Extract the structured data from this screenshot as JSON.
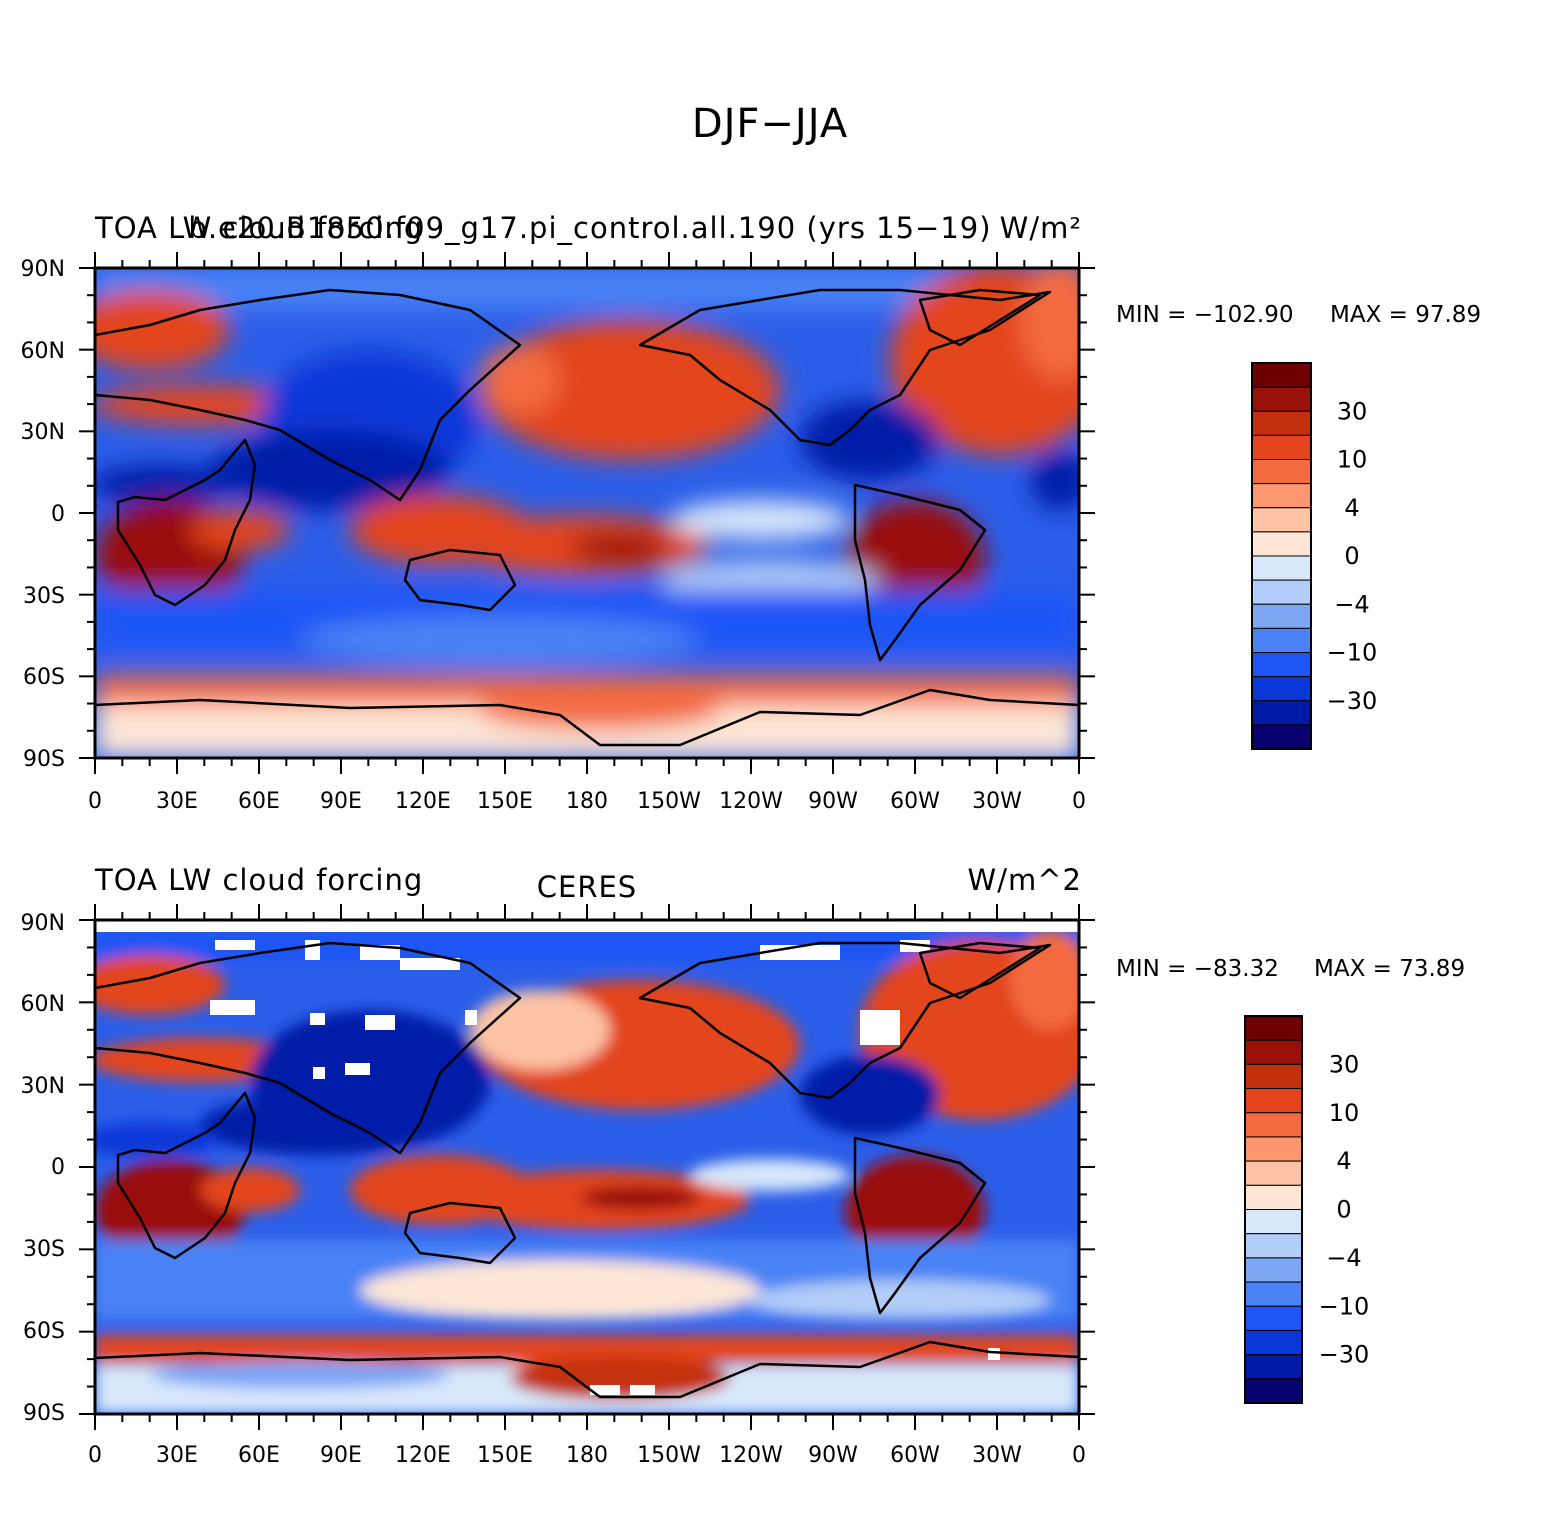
{
  "main_title": "DJF−JJA",
  "colorbar": {
    "colors": [
      "#08006f",
      "#001aa8",
      "#0a37d8",
      "#1e55f5",
      "#4a82f5",
      "#7ea6f5",
      "#b2cdf7",
      "#d8e8fb",
      "#fde6d6",
      "#fdc3a5",
      "#fb9670",
      "#f36a3f",
      "#e3441b",
      "#c4300e",
      "#991108",
      "#6f0000"
    ],
    "labels": [
      "30",
      "10",
      "4",
      "0",
      "−4",
      "−10",
      "−30"
    ]
  },
  "panels": [
    {
      "id": "model",
      "left_title": "TOA LW cloud forcing",
      "center_title": "b.e20.B1850.f09_g17.pi_control.all.190 (yrs 15−19)",
      "right_title": "W/m²",
      "min_label": "MIN = −102.90",
      "max_label": "MAX =   97.89"
    },
    {
      "id": "obs",
      "left_title": "TOA LW cloud forcing",
      "center_title": "CERES",
      "right_title": "W/m^2",
      "min_label": "MIN = −83.32",
      "max_label": "MAX =   73.89"
    }
  ],
  "axes": {
    "lat_ticks": [
      "90N",
      "60N",
      "30N",
      "0",
      "30S",
      "60S",
      "90S"
    ],
    "lon_ticks": [
      "0",
      "30E",
      "60E",
      "90E",
      "120E",
      "150E",
      "180",
      "150W",
      "120W",
      "90W",
      "60W",
      "30W",
      "0"
    ]
  }
}
